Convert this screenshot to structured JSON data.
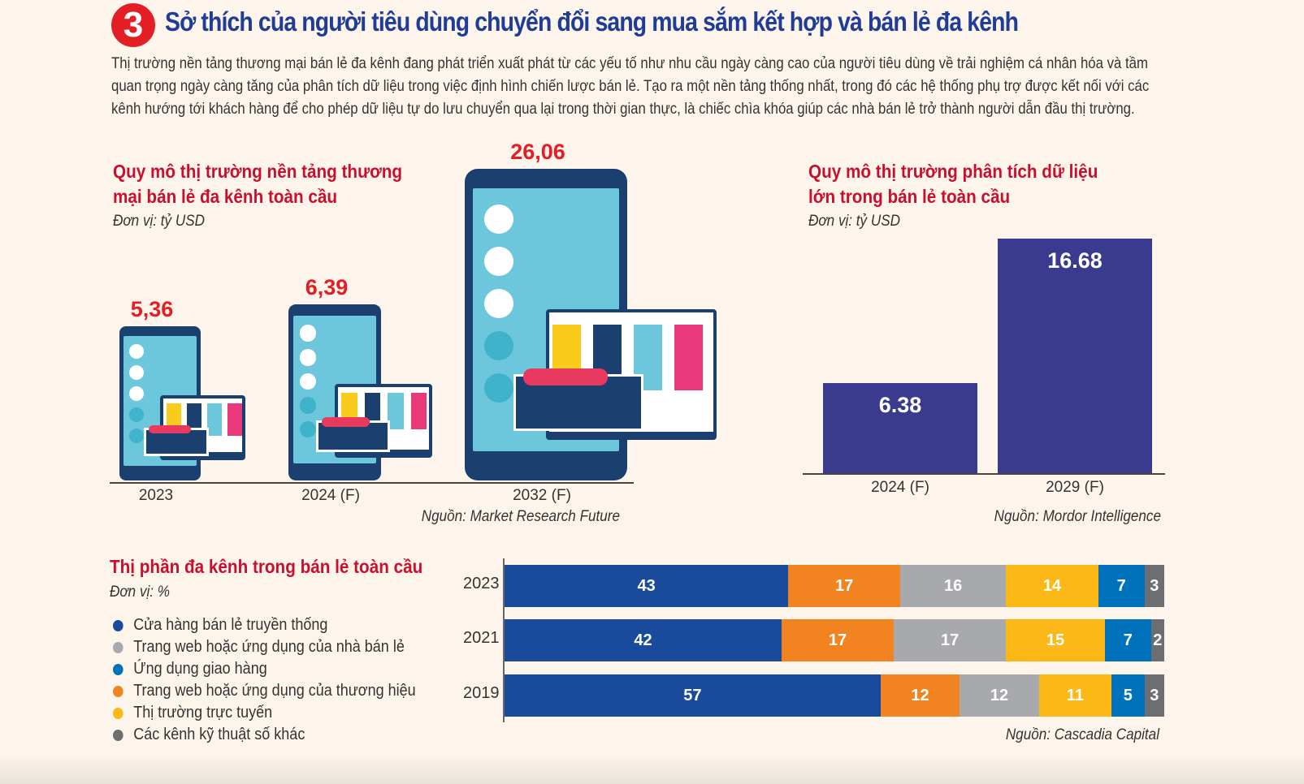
{
  "header": {
    "number": "3",
    "title": "Sở thích của người tiêu dùng chuyển đổi sang mua sắm kết hợp và bán lẻ đa kênh",
    "intro": "Thị trường nền tảng thương mại bán lẻ đa kênh đang phát triển xuất phát từ các yếu tố như nhu cầu ngày càng cao của người tiêu dùng về trải nghiệm cá nhân hóa và tầm quan trọng ngày càng tăng của phân tích dữ liệu trong việc định hình chiến lược bán lẻ. Tạo ra một nền tảng thống nhất, trong đó các hệ thống phụ trợ được kết nối với các kênh hướng tới khách hàng để cho phép dữ liệu tự do lưu chuyển qua lại trong thời gian thực, là chiếc chìa khóa giúp các nhà bán lẻ trở thành người dẫn đầu thị trường."
  },
  "chart_data": [
    {
      "type": "bar",
      "title": "Quy mô thị trường nền tảng thương mại bán lẻ đa kênh toàn cầu",
      "unit": "Đơn vị: tỷ USD",
      "categories": [
        "2023",
        "2024 (F)",
        "2032 (F)"
      ],
      "values": [
        5.36,
        6.39,
        26.06
      ],
      "labels": [
        "5,36",
        "6,39",
        "26,06"
      ],
      "source": "Nguồn: Market Research Future"
    },
    {
      "type": "bar",
      "title": "Quy mô thị trường phân tích dữ liệu lớn trong bán lẻ toàn cầu",
      "unit": "Đơn vị: tỷ USD",
      "categories": [
        "2024 (F)",
        "2029 (F)"
      ],
      "values": [
        6.38,
        16.68
      ],
      "labels": [
        "6.38",
        "16.68"
      ],
      "color": "#3a3a8f",
      "source": "Nguồn: Mordor Intelligence"
    },
    {
      "type": "bar",
      "stacked": true,
      "orientation": "horizontal",
      "title": "Thị phần đa kênh trong bán lẻ toàn cầu",
      "unit": "Đơn vị: %",
      "categories": [
        "2023",
        "2021",
        "2019"
      ],
      "series": [
        {
          "name": "Cửa hàng bán lẻ truyền thống",
          "color": "#1a4a9c",
          "values": [
            43,
            42,
            57
          ]
        },
        {
          "name": "Trang web hoặc ứng dụng của thương hiệu",
          "color": "#f18421",
          "values": [
            17,
            17,
            12
          ]
        },
        {
          "name": "Trang web hoặc ứng dụng của nhà bán lẻ",
          "color": "#a7a9ac",
          "values": [
            16,
            17,
            12
          ]
        },
        {
          "name": "Thị trường trực tuyến",
          "color": "#fbb817",
          "values": [
            14,
            15,
            11
          ]
        },
        {
          "name": "Ứng dụng giao hàng",
          "color": "#0072bc",
          "values": [
            7,
            7,
            5
          ]
        },
        {
          "name": "Các kênh kỹ thuật số khác",
          "color": "#6d6e71",
          "values": [
            3,
            2,
            3
          ]
        }
      ],
      "legend_order": [
        0,
        2,
        4,
        1,
        3,
        5
      ],
      "source": "Nguồn: Cascadia Capital"
    }
  ]
}
